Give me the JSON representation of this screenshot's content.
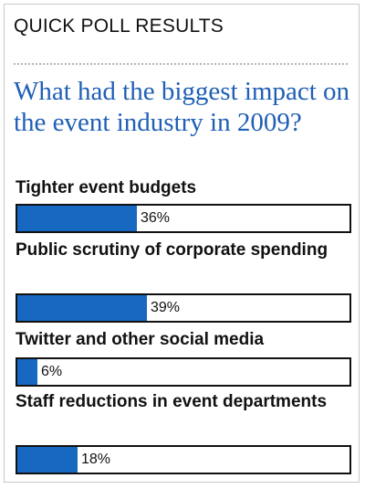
{
  "header": {
    "title": "QUICK POLL RESULTS"
  },
  "question": "What had the biggest impact on the event industry in 2009?",
  "chart_data": {
    "type": "bar",
    "categories": [
      "Tighter event budgets",
      "Public scrutiny of corporate spending",
      "Twitter and other social media",
      "Staff reductions in event departments"
    ],
    "values": [
      36,
      39,
      6,
      18
    ],
    "value_labels": [
      "36%",
      "39%",
      "6%",
      "18%"
    ],
    "ylim": [
      0,
      100
    ],
    "colors": {
      "bar": "#1668c1",
      "track_border": "#111111"
    }
  }
}
